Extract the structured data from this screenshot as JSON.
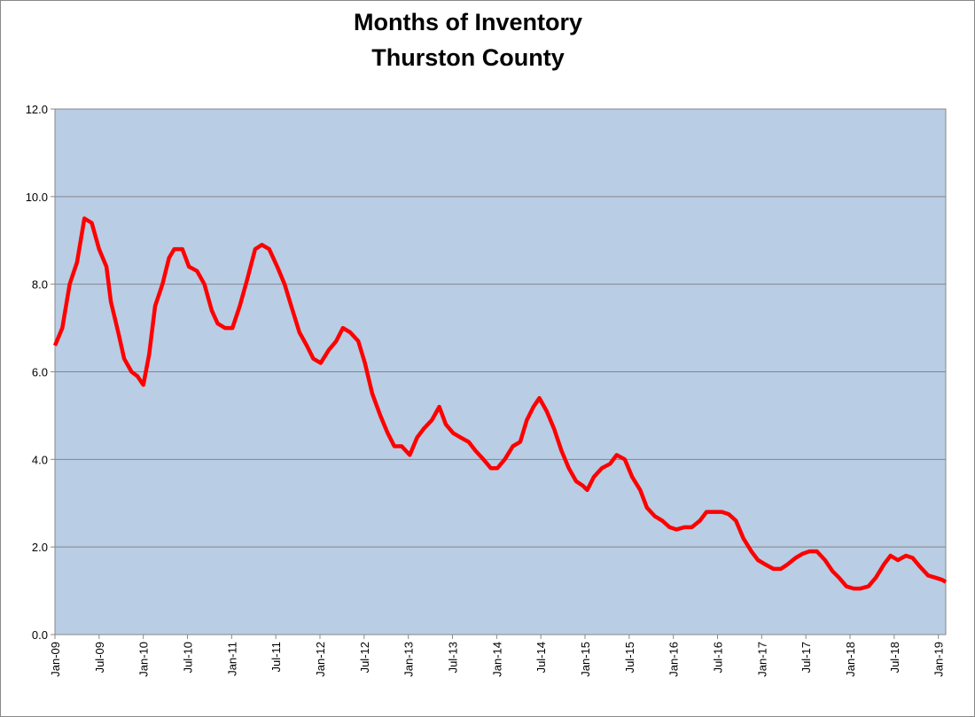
{
  "chart_data": {
    "type": "line",
    "title": "Months of Inventory",
    "subtitle": "Thurston County",
    "x": [
      0,
      1,
      2,
      3,
      4,
      5,
      6,
      7,
      7.6,
      8.6,
      9.4,
      10.4,
      11.2,
      12,
      12.8,
      13.6,
      14.6,
      15.5,
      16.2,
      17.3,
      18.2,
      19.3,
      20.3,
      21.3,
      22.1,
      23.1,
      24.1,
      25.1,
      26.1,
      27.2,
      28.1,
      29.1,
      30.2,
      31.2,
      32.1,
      33.2,
      34.2,
      35.1,
      36.1,
      37.2,
      38.2,
      39.1,
      40.1,
      41.2,
      42.1,
      43.1,
      44.2,
      45.2,
      46.1,
      47.1,
      48.2,
      49.2,
      50.1,
      51.2,
      52.2,
      53.1,
      54.1,
      55.1,
      56.2,
      57.1,
      58.2,
      59.2,
      60.1,
      61.1,
      62.2,
      63.2,
      64.1,
      65,
      65.8,
      66.8,
      67.8,
      68.8,
      69.8,
      70.8,
      71.7,
      72.3,
      73.2,
      74.3,
      75.4,
      76.3,
      77.4,
      78.4,
      79.5,
      80.4,
      81.5,
      82.5,
      83.5,
      84.4,
      85.5,
      86.5,
      87.6,
      88.5,
      89.5,
      90.6,
      91.5,
      92.5,
      93.5,
      94.6,
      95.5,
      96.5,
      97.6,
      98.6,
      99.5,
      100.6,
      101.6,
      102.5,
      103.5,
      104.6,
      105.6,
      106.5,
      107.5,
      108.5,
      109.4,
      110.5,
      111.5,
      112.6,
      113.5,
      114.5,
      115.6,
      116.5,
      117.5,
      118.6,
      119.6,
      120.5,
      121
    ],
    "series": [
      {
        "name": "Months of Inventory",
        "color": "#ff0000",
        "values": [
          6.6,
          7.0,
          8.0,
          8.5,
          9.5,
          9.4,
          8.8,
          8.4,
          7.6,
          6.9,
          6.3,
          6.0,
          5.9,
          5.7,
          6.4,
          7.5,
          8.0,
          8.6,
          8.8,
          8.8,
          8.4,
          8.3,
          8.0,
          7.4,
          7.1,
          7.0,
          7.0,
          7.5,
          8.1,
          8.8,
          8.9,
          8.8,
          8.4,
          8.0,
          7.5,
          6.9,
          6.6,
          6.3,
          6.2,
          6.5,
          6.7,
          7.0,
          6.9,
          6.7,
          6.2,
          5.5,
          5.0,
          4.6,
          4.3,
          4.3,
          4.1,
          4.5,
          4.7,
          4.9,
          5.2,
          4.8,
          4.6,
          4.5,
          4.4,
          4.2,
          4.0,
          3.8,
          3.8,
          4.0,
          4.3,
          4.4,
          4.9,
          5.2,
          5.4,
          5.1,
          4.7,
          4.2,
          3.8,
          3.5,
          3.4,
          3.3,
          3.6,
          3.8,
          3.9,
          4.1,
          4.0,
          3.6,
          3.3,
          2.9,
          2.7,
          2.6,
          2.45,
          2.4,
          2.45,
          2.45,
          2.6,
          2.8,
          2.8,
          2.8,
          2.75,
          2.6,
          2.2,
          1.9,
          1.7,
          1.6,
          1.5,
          1.5,
          1.6,
          1.75,
          1.85,
          1.9,
          1.9,
          1.7,
          1.45,
          1.3,
          1.1,
          1.05,
          1.05,
          1.1,
          1.3,
          1.6,
          1.8,
          1.7,
          1.8,
          1.75,
          1.55,
          1.35,
          1.3,
          1.25,
          1.2
        ]
      }
    ],
    "xlim": [
      0,
      121
    ],
    "xticks": [
      {
        "value": 0,
        "label": "Jan-09"
      },
      {
        "value": 6,
        "label": "Jul-09"
      },
      {
        "value": 12,
        "label": "Jan-10"
      },
      {
        "value": 18,
        "label": "Jul-10"
      },
      {
        "value": 24,
        "label": "Jan-11"
      },
      {
        "value": 30,
        "label": "Jul-11"
      },
      {
        "value": 36,
        "label": "Jan-12"
      },
      {
        "value": 42,
        "label": "Jul-12"
      },
      {
        "value": 48,
        "label": "Jan-13"
      },
      {
        "value": 54,
        "label": "Jul-13"
      },
      {
        "value": 60,
        "label": "Jan-14"
      },
      {
        "value": 66,
        "label": "Jul-14"
      },
      {
        "value": 72,
        "label": "Jan-15"
      },
      {
        "value": 78,
        "label": "Jul-15"
      },
      {
        "value": 84,
        "label": "Jan-16"
      },
      {
        "value": 90,
        "label": "Jul-16"
      },
      {
        "value": 96,
        "label": "Jan-17"
      },
      {
        "value": 102,
        "label": "Jul-17"
      },
      {
        "value": 108,
        "label": "Jan-18"
      },
      {
        "value": 114,
        "label": "Jul-18"
      },
      {
        "value": 120,
        "label": "Jan-19"
      }
    ],
    "ylim": [
      0,
      12
    ],
    "yticks": [
      {
        "value": 0,
        "label": "0.0"
      },
      {
        "value": 2,
        "label": "2.0"
      },
      {
        "value": 4,
        "label": "4.0"
      },
      {
        "value": 6,
        "label": "6.0"
      },
      {
        "value": 8,
        "label": "8.0"
      },
      {
        "value": 10,
        "label": "10.0"
      },
      {
        "value": 12,
        "label": "12.0"
      }
    ],
    "grid": true,
    "plot_background": "#b9cde5"
  }
}
